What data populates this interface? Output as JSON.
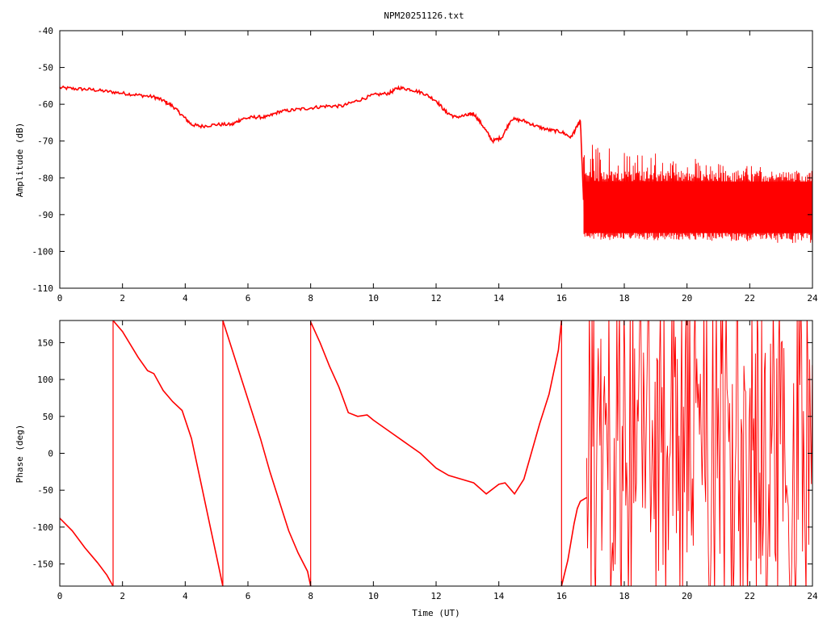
{
  "title": "NPM20251126.txt",
  "colors": {
    "trace": "#ff0000",
    "axis": "#000000",
    "background": "#ffffff"
  },
  "chart_data": [
    {
      "type": "line",
      "title": "NPM20251126.txt",
      "xlabel": "",
      "ylabel": "Amplitude (dB)",
      "xlim": [
        0,
        24
      ],
      "ylim": [
        -110,
        -40
      ],
      "x_ticks": [
        "0",
        "2",
        "4",
        "6",
        "8",
        "10",
        "12",
        "14",
        "16",
        "18",
        "20",
        "22",
        "24"
      ],
      "y_ticks": [
        "-40",
        "-50",
        "-60",
        "-70",
        "-80",
        "-90",
        "-100",
        "-110"
      ],
      "grid": false,
      "series": [
        {
          "color": "#ff0000",
          "x": [
            0,
            0.5,
            1.0,
            1.5,
            2.0,
            2.5,
            3.0,
            3.3,
            3.6,
            3.9,
            4.2,
            4.5,
            5.0,
            5.5,
            5.8,
            6.2,
            6.6,
            7.0,
            7.5,
            8.0,
            8.5,
            9.0,
            9.5,
            10.0,
            10.5,
            10.8,
            11.2,
            11.6,
            12.0,
            12.3,
            12.6,
            13.0,
            13.2,
            13.5,
            13.8,
            14.1,
            14.4,
            14.8,
            15.2,
            15.6,
            16.0,
            16.3,
            16.5,
            16.6,
            16.7
          ],
          "y": [
            -55.5,
            -55.8,
            -56,
            -56.5,
            -57,
            -57.5,
            -58,
            -59,
            -60.5,
            -63,
            -65.5,
            -66,
            -65.5,
            -65.5,
            -64,
            -63.5,
            -63.5,
            -62,
            -61.5,
            -61,
            -60.5,
            -60.5,
            -59,
            -57.5,
            -57,
            -55.5,
            -56,
            -57,
            -59,
            -62,
            -63.5,
            -63,
            -62.5,
            -66,
            -70,
            -69,
            -64,
            -64.5,
            -66,
            -67,
            -67.5,
            -69,
            -66,
            -64.5,
            -86
          ]
        }
      ],
      "noise_band": {
        "x_start": 16.7,
        "x_end": 24,
        "y_min_start": -96,
        "y_min_end": -98,
        "y_max_start": -70,
        "y_max_end": -79,
        "dense_min": -95,
        "dense_max": -81
      }
    },
    {
      "type": "line",
      "title": "",
      "xlabel": "Time (UT)",
      "ylabel": "Phase (deg)",
      "xlim": [
        0,
        24
      ],
      "ylim": [
        -180,
        180
      ],
      "x_ticks": [
        "0",
        "2",
        "4",
        "6",
        "8",
        "10",
        "12",
        "14",
        "16",
        "18",
        "20",
        "22",
        "24"
      ],
      "y_ticks": [
        "150",
        "100",
        "50",
        "0",
        "-50",
        "-100",
        "-150"
      ],
      "grid": false,
      "series": [
        {
          "color": "#ff0000",
          "segments": [
            {
              "x": [
                0,
                0.4,
                0.8,
                1.2,
                1.5,
                1.7
              ],
              "y": [
                -88,
                -105,
                -128,
                -148,
                -165,
                -180
              ]
            },
            {
              "x": [
                1.7,
                2.0,
                2.5,
                2.8,
                3.0,
                3.3,
                3.6,
                3.9,
                4.2,
                4.5,
                4.8,
                5.0,
                5.2
              ],
              "y": [
                180,
                165,
                130,
                112,
                108,
                85,
                70,
                58,
                20,
                -40,
                -100,
                -140,
                -180
              ]
            },
            {
              "x": [
                5.2,
                5.5,
                5.8,
                6.1,
                6.4,
                6.7,
                7.0,
                7.3,
                7.6,
                7.9,
                8.0
              ],
              "y": [
                180,
                140,
                100,
                60,
                20,
                -25,
                -65,
                -105,
                -135,
                -160,
                -180
              ]
            },
            {
              "x": [
                8.0,
                8.3,
                8.6,
                8.9,
                9.2,
                9.5,
                9.8,
                10.0,
                10.5,
                11.0,
                11.5,
                12.0,
                12.4,
                12.8,
                13.2,
                13.6,
                14.0,
                14.2,
                14.5,
                14.8,
                15.0,
                15.3,
                15.6,
                15.9,
                16.0
              ],
              "y": [
                178,
                150,
                118,
                90,
                55,
                50,
                52,
                45,
                30,
                15,
                0,
                -20,
                -30,
                -35,
                -40,
                -55,
                -42,
                -40,
                -55,
                -35,
                -5,
                40,
                80,
                140,
                180
              ]
            },
            {
              "x": [
                16.0,
                16.2,
                16.4,
                16.5,
                16.6,
                16.8
              ],
              "y": [
                -180,
                -145,
                -95,
                -75,
                -65,
                -60
              ]
            }
          ]
        }
      ],
      "noise_band": {
        "x_start": 16.8,
        "x_end": 24,
        "y_min": -180,
        "y_max": 180
      }
    }
  ]
}
